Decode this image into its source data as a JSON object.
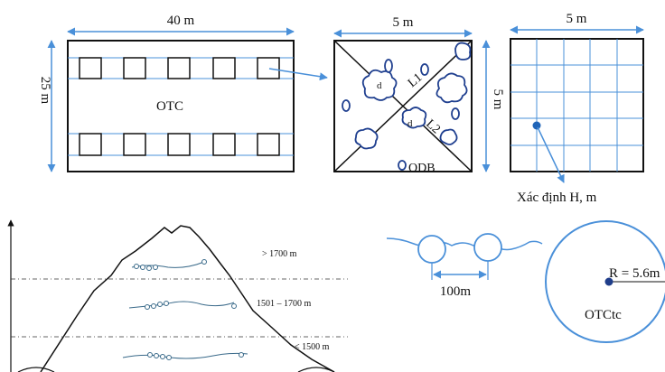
{
  "otc_panel": {
    "width_label": "40 m",
    "height_label": "25 m",
    "plot_label": "OTC"
  },
  "odb_panel": {
    "width_label": "5 m",
    "height_label": "5 m",
    "diameter_label": "d",
    "distance_label_1": "L1",
    "distance_label_2": "L2",
    "subplot_label": "ODB"
  },
  "grid_panel": {
    "width_label": "5 m",
    "caption": "Xác định H, m"
  },
  "elevation_panel": {
    "zone_high": "> 1700 m",
    "zone_mid": "1501 – 1700 m",
    "zone_low": "< 1500 m"
  },
  "transect_panel": {
    "spacing_label": "100m"
  },
  "circle_plot_panel": {
    "radius_label": "R = 5.6m",
    "plot_label": "OTCtc"
  },
  "colors": {
    "accent_blue": "#4a90d9",
    "line_dark": "#111111",
    "cloud_blue": "#1f3f8f",
    "point_navy": "#1f3d8a"
  }
}
